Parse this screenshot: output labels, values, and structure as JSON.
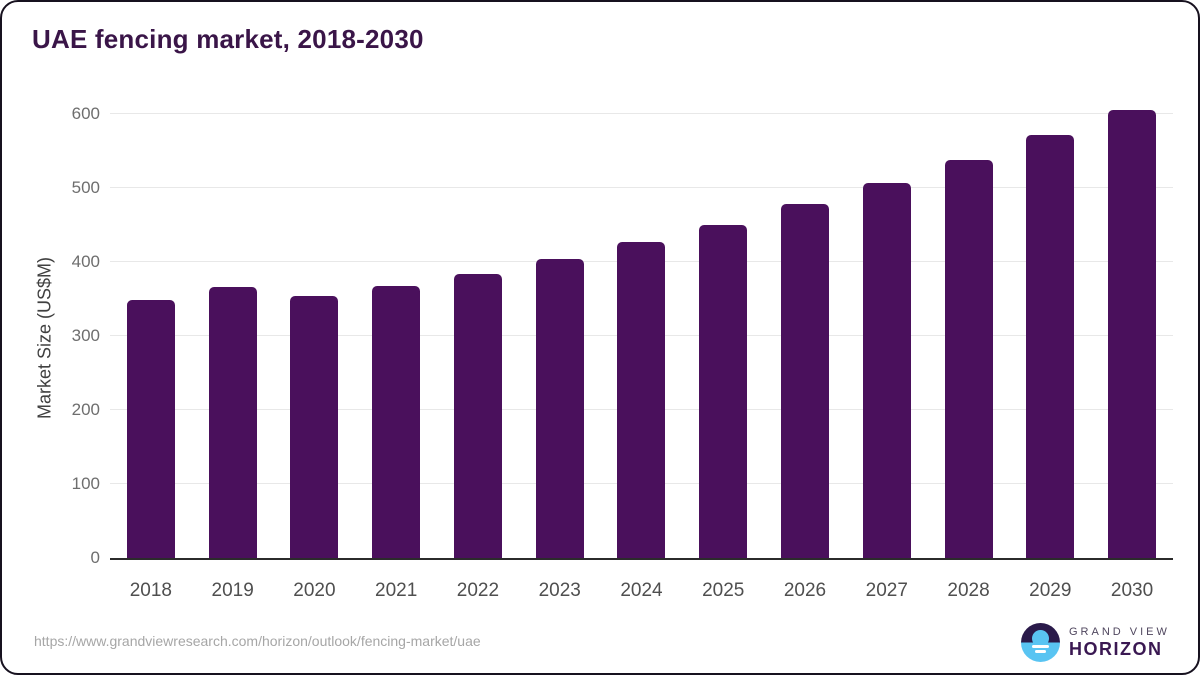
{
  "page": {
    "title": "UAE fencing market, 2018-2030",
    "source_url": "https://www.grandviewresearch.com/horizon/outlook/fencing-market/uae",
    "logo": {
      "line1": "GRAND VIEW",
      "line2": "HORIZON"
    }
  },
  "colors": {
    "bar": "#4a105c",
    "title": "#3a1548",
    "grid": "#e8e8e8",
    "axis_line": "#2b2b2b",
    "y_tick": "#6e6e6e",
    "x_tick": "#4f4f4f",
    "axis_title": "#404040",
    "url_text": "#a6a6a6",
    "logo_dark": "#2a1a4a",
    "logo_blue": "#59c4f2"
  },
  "chart_data": {
    "type": "bar",
    "title": "UAE fencing market, 2018-2030",
    "categories": [
      "2018",
      "2019",
      "2020",
      "2021",
      "2022",
      "2023",
      "2024",
      "2025",
      "2026",
      "2027",
      "2028",
      "2029",
      "2030"
    ],
    "values": [
      349,
      366,
      354,
      367,
      384,
      404,
      427,
      450,
      478,
      507,
      538,
      571,
      606
    ],
    "xlabel": "",
    "ylabel": "Market Size (US$M)",
    "ylim": [
      0,
      600
    ],
    "yticks": [
      0,
      100,
      200,
      300,
      400,
      500,
      600
    ],
    "grid": "horizontal",
    "legend": false,
    "bar_color": "#4a105c"
  }
}
